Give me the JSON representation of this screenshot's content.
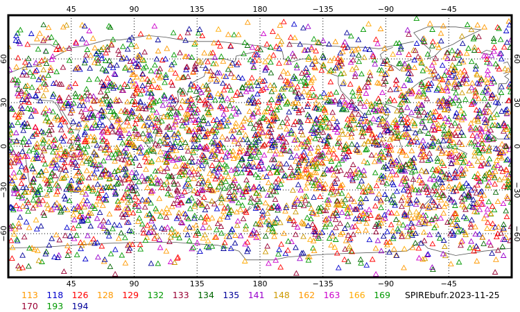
{
  "map": {
    "projection": "cylindrical equidistant",
    "lon_center": 180,
    "lon_range": [
      0,
      360
    ],
    "lat_range": [
      -90,
      90
    ],
    "marker": "triangle-outline",
    "grid": "dotted"
  },
  "axes": {
    "top_ticks": [
      "45",
      "90",
      "135",
      "180",
      "−135",
      "−90",
      "−45"
    ],
    "bottom_ticks": [
      "45",
      "90",
      "135",
      "180",
      "−135",
      "−90",
      "−45"
    ],
    "left_ticks": [
      "60",
      "30",
      "0",
      "−30",
      "−60"
    ],
    "right_ticks": [
      "60",
      "30",
      "0",
      "−30",
      "−60"
    ]
  },
  "legend": {
    "items": [
      {
        "label": "113",
        "color": "#ff9900"
      },
      {
        "label": "118",
        "color": "#0000cc"
      },
      {
        "label": "126",
        "color": "#ff0000"
      },
      {
        "label": "128",
        "color": "#ff9900"
      },
      {
        "label": "129",
        "color": "#ff0000"
      },
      {
        "label": "132",
        "color": "#009900"
      },
      {
        "label": "133",
        "color": "#990033"
      },
      {
        "label": "134",
        "color": "#006600"
      },
      {
        "label": "135",
        "color": "#000099"
      },
      {
        "label": "141",
        "color": "#9900cc"
      },
      {
        "label": "148",
        "color": "#cc9900"
      },
      {
        "label": "162",
        "color": "#ff9900"
      },
      {
        "label": "163",
        "color": "#cc00cc"
      },
      {
        "label": "166",
        "color": "#ffaa00"
      },
      {
        "label": "169",
        "color": "#009900"
      },
      {
        "label": "170",
        "color": "#990033"
      },
      {
        "label": "193",
        "color": "#009900"
      },
      {
        "label": "194",
        "color": "#000099"
      }
    ],
    "source_label": "SPIREbufr.2023-11-25"
  }
}
